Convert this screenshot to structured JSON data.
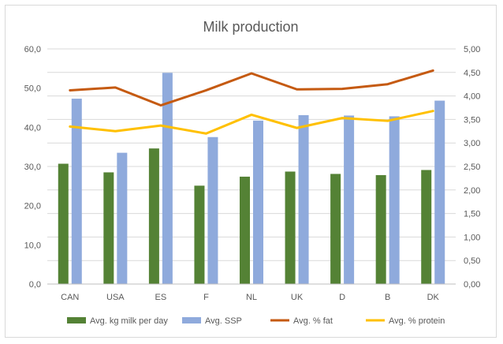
{
  "chart_data": {
    "type": "bar",
    "title": "Milk production",
    "categories": [
      "CAN",
      "USA",
      "ES",
      "F",
      "NL",
      "UK",
      "D",
      "B",
      "DK"
    ],
    "left_axis": {
      "range": [
        0,
        60
      ],
      "ticks": [
        "0,0",
        "10,0",
        "20,0",
        "30,0",
        "40,0",
        "50,0",
        "60,0"
      ]
    },
    "right_axis": {
      "range": [
        0,
        5
      ],
      "ticks": [
        "0,00",
        "0,50",
        "1,00",
        "1,50",
        "2,00",
        "2,50",
        "3,00",
        "3,50",
        "4,00",
        "4,50",
        "5,00"
      ]
    },
    "grid": true,
    "legend_position": "bottom",
    "series": [
      {
        "name": "Avg. kg milk per day",
        "kind": "bar",
        "axis": "left",
        "color": "#548235",
        "values": [
          30.7,
          28.5,
          34.6,
          25.1,
          27.4,
          28.7,
          28.1,
          27.8,
          29.1
        ]
      },
      {
        "name": "Avg. SSP",
        "kind": "bar",
        "axis": "left",
        "color": "#8faadc",
        "values": [
          47.3,
          33.5,
          53.9,
          37.5,
          41.7,
          43.1,
          43.0,
          42.8,
          46.8
        ]
      },
      {
        "name": "Avg. % fat",
        "kind": "line",
        "axis": "right",
        "color": "#c55a11",
        "values": [
          4.12,
          4.18,
          3.8,
          4.12,
          4.48,
          4.14,
          4.15,
          4.25,
          4.54
        ]
      },
      {
        "name": "Avg. % protein",
        "kind": "line",
        "axis": "right",
        "color": "#ffc000",
        "values": [
          3.35,
          3.25,
          3.37,
          3.2,
          3.6,
          3.32,
          3.53,
          3.47,
          3.68
        ]
      }
    ]
  }
}
